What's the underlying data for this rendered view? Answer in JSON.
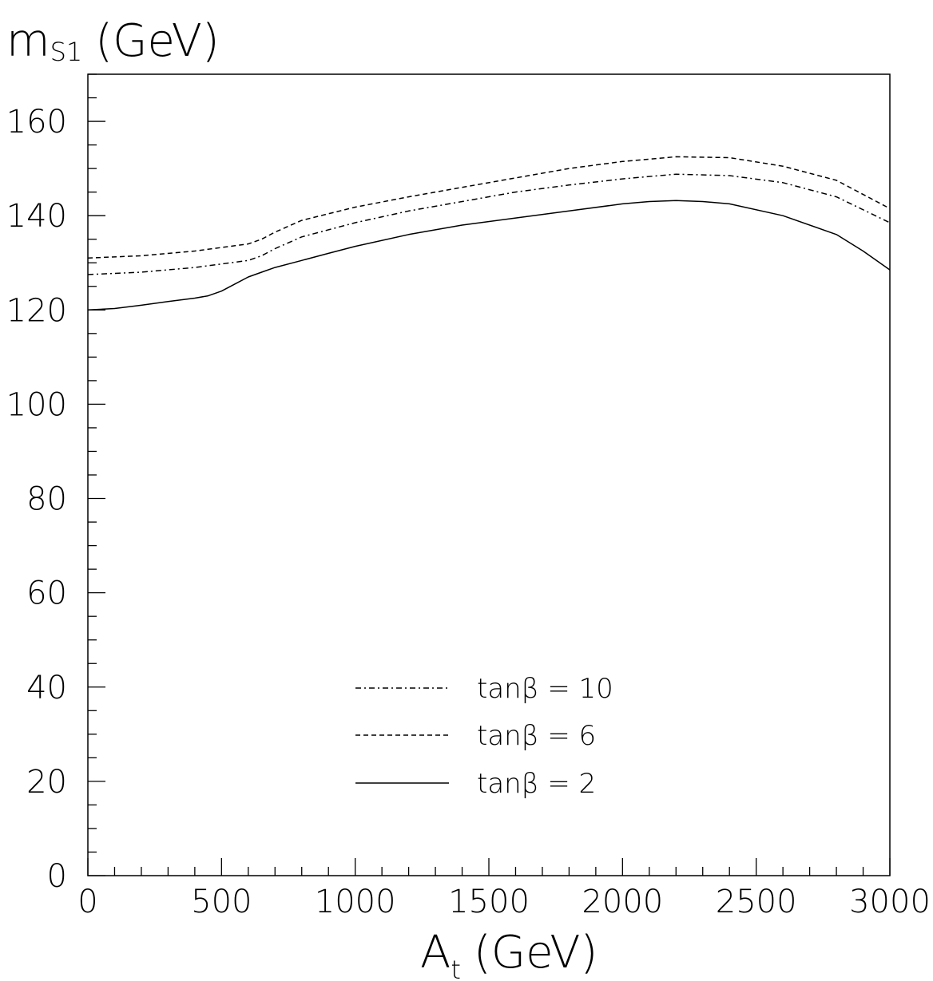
{
  "chart_data": {
    "type": "line",
    "xlabel": {
      "main": "A",
      "sub": "t",
      "unit": "(GeV)"
    },
    "ylabel": {
      "main": "m",
      "sub": "S1",
      "unit": "(GeV)"
    },
    "xlim": [
      0,
      3000
    ],
    "ylim": [
      0,
      170
    ],
    "x_ticks": [
      0,
      500,
      1000,
      1500,
      2000,
      2500,
      3000
    ],
    "y_ticks": [
      0,
      20,
      40,
      60,
      80,
      100,
      120,
      140,
      160
    ],
    "grid": false,
    "legend_position": "bottom-center",
    "series": [
      {
        "name": "tanβ = 10",
        "style": "dashdot",
        "x": [
          0,
          200,
          400,
          600,
          650,
          700,
          800,
          1000,
          1200,
          1400,
          1600,
          1800,
          2000,
          2200,
          2400,
          2600,
          2800,
          3000
        ],
        "y": [
          127.5,
          128,
          129,
          130.5,
          131.5,
          133,
          135.5,
          138.5,
          141,
          143,
          145,
          146.5,
          147.8,
          148.8,
          148.5,
          147,
          144,
          138.5
        ]
      },
      {
        "name": "tanβ = 6",
        "style": "dashed",
        "x": [
          0,
          200,
          400,
          600,
          650,
          700,
          800,
          1000,
          1200,
          1400,
          1600,
          1800,
          2000,
          2200,
          2400,
          2600,
          2800,
          3000
        ],
        "y": [
          131,
          131.5,
          132.5,
          134,
          135,
          136.5,
          139,
          141.8,
          144,
          146,
          148,
          150,
          151.5,
          152.5,
          152.3,
          150.5,
          147.5,
          141.5
        ]
      },
      {
        "name": "tanβ = 2",
        "style": "solid",
        "x": [
          0,
          100,
          200,
          300,
          400,
          450,
          500,
          550,
          600,
          650,
          700,
          800,
          900,
          1000,
          1200,
          1400,
          1600,
          1800,
          2000,
          2100,
          2200,
          2300,
          2400,
          2600,
          2800,
          2900,
          3000
        ],
        "y": [
          120,
          120.3,
          121,
          121.8,
          122.5,
          123,
          124,
          125.5,
          127,
          128,
          129,
          130.5,
          132,
          133.5,
          136,
          138,
          139.5,
          141,
          142.5,
          143,
          143.2,
          143,
          142.5,
          140,
          136,
          132.5,
          128.5
        ]
      }
    ],
    "colors": {
      "line": "#000000",
      "background": "#ffffff"
    }
  }
}
